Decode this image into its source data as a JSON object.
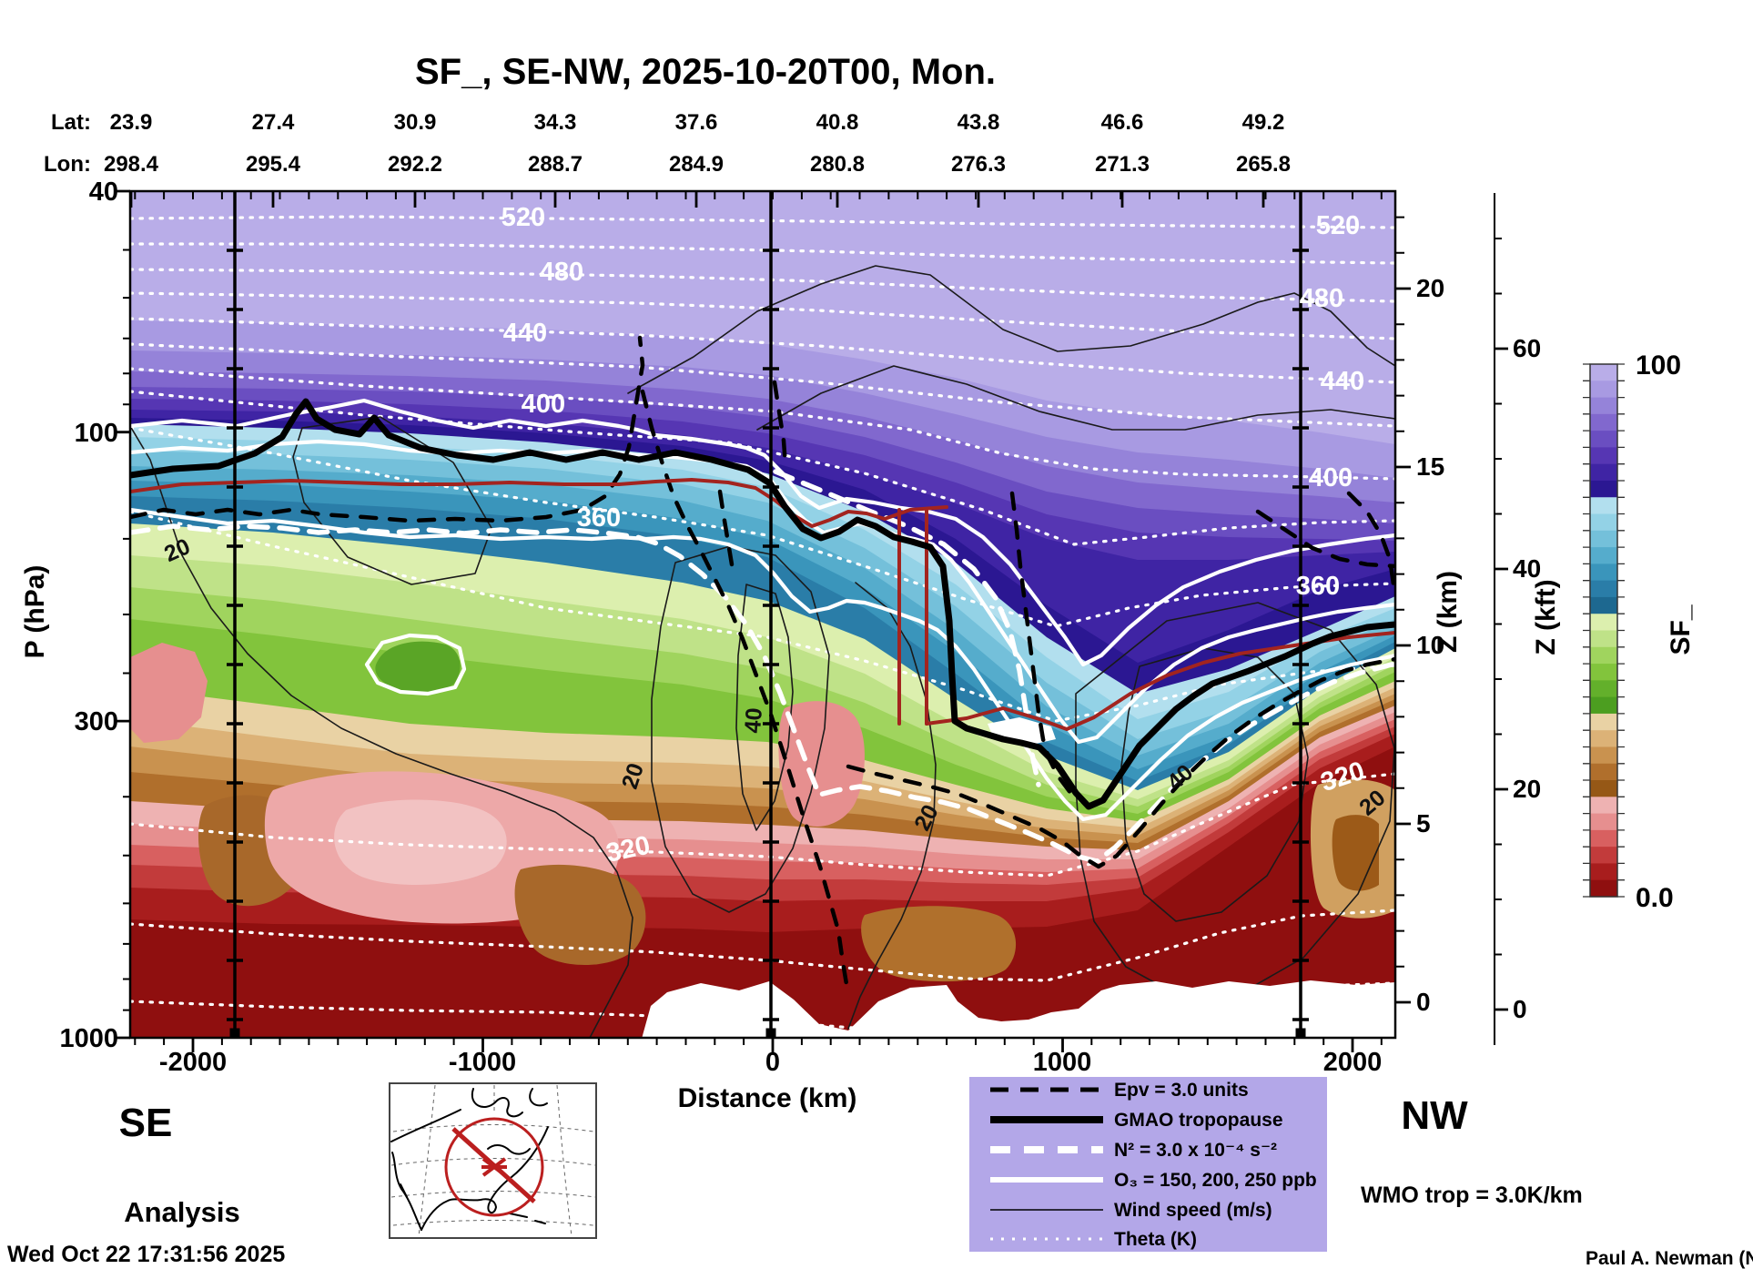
{
  "title": "SF_, SE-NW, 2025-10-20T00, Mon.",
  "top_axis": {
    "lat_label": "Lat:",
    "lon_label": "Lon:",
    "lat": [
      "23.9",
      "27.4",
      "30.9",
      "34.3",
      "37.6",
      "40.8",
      "43.8",
      "46.6",
      "49.2"
    ],
    "lon": [
      "298.4",
      "295.4",
      "292.2",
      "288.7",
      "284.9",
      "280.8",
      "276.3",
      "271.3",
      "265.8"
    ]
  },
  "pressure_axis": {
    "label": "P (hPa)",
    "ticks": [
      "40",
      "100",
      "300",
      "1000"
    ]
  },
  "distance_axis": {
    "label": "Distance (km)",
    "ticks": [
      "-2000",
      "-1000",
      "0",
      "1000",
      "2000"
    ]
  },
  "z_km_axis": {
    "label": "Z (km)",
    "ticks": [
      "0",
      "5",
      "10",
      "15",
      "20"
    ]
  },
  "z_kft_axis": {
    "label": "Z (kft)",
    "ticks": [
      "0",
      "20",
      "40",
      "60"
    ]
  },
  "colorbar": {
    "label": "SF_",
    "top_tick": "100",
    "bottom_tick": "0.0",
    "colors": [
      "#b9ade8",
      "#a89ae2",
      "#9583d9",
      "#8168ce",
      "#6a4ec1",
      "#5636b3",
      "#3f24a4",
      "#2b1792",
      "#b2dfee",
      "#93d2e6",
      "#74c0da",
      "#55accc",
      "#3a95bb",
      "#2a7da8",
      "#1d6890",
      "#dcefae",
      "#bfe288",
      "#a0d45e",
      "#82c43c",
      "#63b02b",
      "#4c9e20",
      "#e9d2a4",
      "#dcb277",
      "#c9924f",
      "#b06f2c",
      "#965816",
      "#eeb2b2",
      "#e68f8f",
      "#d86060",
      "#c23b3b",
      "#a81d1d",
      "#8f0f0f"
    ]
  },
  "corners": {
    "left": "SE",
    "right": "NW",
    "analysis": "Analysis",
    "timestamp": "Wed Oct 22 17:31:56 2025",
    "credit": "Paul A. Newman (NASA",
    "wmo": "WMO trop = 3.0K/km",
    "wmo_color": "#b5241f"
  },
  "legend": {
    "bg": "#b3a7e8",
    "items": [
      {
        "label": "Epv = 3.0 units"
      },
      {
        "label": "GMAO tropopause"
      },
      {
        "label": "N² = 3.0 x 10⁻⁴ s⁻²"
      },
      {
        "label": "O₃ = 150, 200, 250 ppb"
      },
      {
        "label": "Wind speed (m/s)"
      },
      {
        "label": "Theta (K)"
      }
    ]
  },
  "plot_labels": {
    "theta_left": [
      "520",
      "480",
      "440",
      "400",
      "360",
      "320"
    ],
    "theta_right": [
      "520",
      "480",
      "440",
      "400",
      "360",
      "320"
    ],
    "wind": [
      "20",
      "20",
      "40",
      "20",
      "40",
      "20"
    ]
  },
  "chart_data": {
    "type": "heatmap",
    "title": "SF_, SE-NW, 2025-10-20T00, Mon.",
    "fill_variable": "SF_",
    "fill_range": [
      0.0,
      100
    ],
    "colorbar_tick_labels": [
      "100",
      "0.0"
    ],
    "xlabel": "Distance (km)",
    "x_range_km": [
      -2200,
      2200
    ],
    "x_ticks": [
      -2000,
      -1000,
      0,
      1000,
      2000
    ],
    "ylabel_left": "P (hPa)",
    "y_scale": "log",
    "y_range_hPa": [
      1000,
      40
    ],
    "y_ticks_hPa": [
      40,
      100,
      300,
      1000
    ],
    "right_axis_km": {
      "label": "Z (km)",
      "ticks": [
        0,
        5,
        10,
        15,
        20
      ]
    },
    "right_axis_kft": {
      "label": "Z (kft)",
      "ticks": [
        0,
        20,
        40,
        60
      ]
    },
    "waypoints": [
      {
        "lat": 23.9,
        "lon": 298.4
      },
      {
        "lat": 27.4,
        "lon": 295.4
      },
      {
        "lat": 30.9,
        "lon": 292.2
      },
      {
        "lat": 34.3,
        "lon": 288.7
      },
      {
        "lat": 37.6,
        "lon": 284.9
      },
      {
        "lat": 40.8,
        "lon": 280.8
      },
      {
        "lat": 43.8,
        "lon": 276.3
      },
      {
        "lat": 46.6,
        "lon": 271.3
      },
      {
        "lat": 49.2,
        "lon": 265.8
      }
    ],
    "theta_contours_K": [
      300,
      310,
      320,
      340,
      360,
      380,
      400,
      420,
      440,
      460,
      480,
      500,
      520
    ],
    "theta_labeled_K": [
      320,
      360,
      400,
      440,
      480,
      520
    ],
    "wind_speed_contours_ms": [
      20,
      40
    ],
    "ozone_contours_ppb": [
      150,
      200,
      250
    ],
    "epv_contour": "Epv = 3.0 units",
    "n2_contour": "N² = 3.0 x 10⁻⁴ s⁻²",
    "wmo_tropopause_criterion": "WMO trop = 3.0K/km",
    "gmao_tropopause_hPa_by_distance_km": [
      [
        -2200,
        118
      ],
      [
        -1400,
        103
      ],
      [
        -500,
        113
      ],
      [
        0,
        122
      ],
      [
        470,
        148
      ],
      [
        620,
        244
      ],
      [
        630,
        290
      ],
      [
        1070,
        412
      ],
      [
        1420,
        268
      ],
      [
        1820,
        225
      ],
      [
        2150,
        205
      ]
    ],
    "source_label": "Analysis",
    "run_timestamp": "Wed Oct 22 17:31:56 2025"
  }
}
